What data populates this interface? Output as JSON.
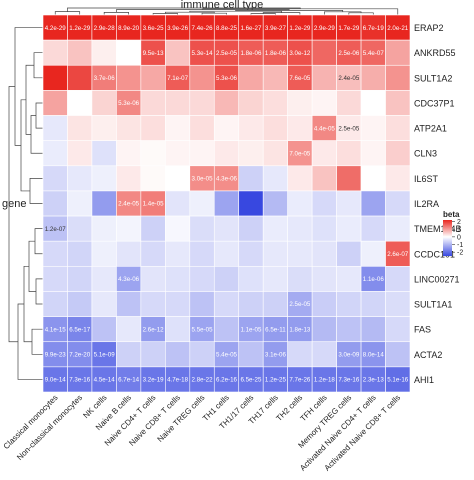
{
  "chart_data": {
    "type": "heatmap",
    "title": "immune cell type",
    "ylabel": "gene",
    "columns": [
      "Classical monocytes",
      "Non-classical monocytes",
      "NK cells",
      "Naive B cells",
      "Naive CD4+ T cells",
      "Naive CD8+ T cells",
      "Naive TREG cells",
      "TH1 cells",
      "TH1/17 cells",
      "TH17 cells",
      "TH2 cells",
      "TFH cells",
      "Memory TREG cells",
      "Activated Naive CD4+ T cells",
      "Activated Naive CD8+ T cells"
    ],
    "rows": [
      "ERAP2",
      "ANKRD55",
      "SULT1A2",
      "CDC37P1",
      "ATP2A1",
      "CLN3",
      "IL6ST",
      "IL2RA",
      "TMEM194B",
      "CCDC101",
      "LINC00271",
      "SULT1A1",
      "FAS",
      "ACTA2",
      "AHI1"
    ],
    "legend": {
      "title": "beta",
      "ticks": [
        2,
        1,
        0,
        -1,
        -2
      ],
      "range": [
        -2.5,
        2.2
      ]
    },
    "beta": [
      [
        2.1,
        2.0,
        2.0,
        2.0,
        2.0,
        2.0,
        2.0,
        2.0,
        2.0,
        2.0,
        2.0,
        2.0,
        2.0,
        1.9,
        2.0
      ],
      [
        0.35,
        0.55,
        0.15,
        0.0,
        1.6,
        0.55,
        1.6,
        1.6,
        1.5,
        1.5,
        1.6,
        1.4,
        1.5,
        1.4,
        0.85
      ],
      [
        2.1,
        1.7,
        1.2,
        1.0,
        0.8,
        1.5,
        1.0,
        1.6,
        0.8,
        0.65,
        1.5,
        0.7,
        0.6,
        0.75,
        1.0
      ],
      [
        0.85,
        0.0,
        0.4,
        1.1,
        0.35,
        0.35,
        0.35,
        0.65,
        0.4,
        0.3,
        0.15,
        0.1,
        0.35,
        0.0,
        0.55
      ],
      [
        -0.3,
        0.25,
        0.15,
        0.25,
        0.3,
        0.1,
        0.3,
        0.1,
        0.2,
        0.3,
        0.2,
        1.1,
        0.2,
        0.1,
        0.3
      ],
      [
        -0.25,
        0.2,
        -0.4,
        0.1,
        0.05,
        0.1,
        0.1,
        0.2,
        0.15,
        0.25,
        1.0,
        0.2,
        0.3,
        0.1,
        0.45
      ],
      [
        -0.5,
        -0.3,
        -0.2,
        0.2,
        0.05,
        0.0,
        1.05,
        1.05,
        -0.6,
        -0.3,
        0.2,
        0.55,
        1.35,
        0.0,
        0.2
      ],
      [
        -0.6,
        -0.2,
        -1.3,
        1.1,
        1.2,
        -0.35,
        -0.2,
        -1.2,
        -2.4,
        -0.9,
        -0.25,
        -0.5,
        -0.3,
        -1.2,
        -0.5
      ],
      [
        -0.8,
        -0.45,
        -0.2,
        -0.15,
        -0.6,
        -0.1,
        -0.45,
        -0.35,
        -0.6,
        -0.25,
        -0.3,
        -0.4,
        -0.25,
        -0.5,
        -0.25
      ],
      [
        -0.5,
        -0.55,
        -0.2,
        -0.35,
        -0.5,
        -0.3,
        -0.5,
        -0.3,
        -0.5,
        -0.3,
        -0.3,
        -0.35,
        -0.6,
        -0.2,
        1.5
      ],
      [
        -0.5,
        -0.55,
        -0.3,
        -1.2,
        -0.35,
        -0.4,
        -0.5,
        -0.6,
        -0.4,
        -0.3,
        -0.45,
        -0.35,
        -0.3,
        -1.5,
        -0.5
      ],
      [
        -0.55,
        -0.7,
        -0.3,
        -0.8,
        -0.5,
        -0.5,
        -0.8,
        -0.5,
        -0.6,
        -0.6,
        -1.1,
        -0.65,
        -0.55,
        -0.55,
        -0.45
      ],
      [
        -1.4,
        -1.6,
        -0.8,
        -0.3,
        -1.3,
        -0.4,
        -1.2,
        -0.8,
        -1.2,
        -1.3,
        -1.3,
        -0.9,
        -0.8,
        -0.9,
        -0.5
      ],
      [
        -1.5,
        -1.5,
        -1.8,
        -0.6,
        -0.6,
        -0.8,
        -0.6,
        -1.2,
        -0.8,
        -1.3,
        -0.5,
        -0.5,
        -1.3,
        -1.4,
        -0.8
      ],
      [
        -1.8,
        -1.8,
        -1.8,
        -1.7,
        -1.8,
        -1.8,
        -1.8,
        -1.8,
        -1.8,
        -1.8,
        -1.8,
        -1.8,
        -1.8,
        -1.8,
        -1.9
      ]
    ],
    "pvalues": [
      [
        "4.2e-29",
        "1.2e-29",
        "2.9e-28",
        "8.9e-20",
        "3.6e-25",
        "3.9e-26",
        "7.4e-26",
        "8.8e-25",
        "1.6e-27",
        "3.9e-27",
        "1.2e-29",
        "2.9e-29",
        "1.7e-29",
        "6.7e-19",
        "2.0e-21"
      ],
      [
        "",
        "",
        "",
        "",
        "9.5e-13",
        "",
        "5.3e-14",
        "2.5e-05",
        "1.8e-06",
        "1.8e-06",
        "3.0e-12",
        "",
        "2.5e-06",
        "5.4e-07",
        ""
      ],
      [
        "",
        "",
        "3.7e-06",
        "",
        "",
        "7.1e-07",
        "",
        "5.3e-06",
        "",
        "",
        "7.6e-05",
        "",
        "2.4e-05",
        "",
        ""
      ],
      [
        "",
        "",
        "",
        "5.3e-06",
        "",
        "",
        "",
        "",
        "",
        "",
        "",
        "",
        "",
        "",
        ""
      ],
      [
        "",
        "",
        "",
        "",
        "",
        "",
        "",
        "",
        "",
        "",
        "",
        "4.4e-05",
        "2.5e-05",
        "",
        ""
      ],
      [
        "",
        "",
        "",
        "",
        "",
        "",
        "",
        "",
        "",
        "",
        "7.0e-05",
        "",
        "",
        "",
        ""
      ],
      [
        "",
        "",
        "",
        "",
        "",
        "",
        "3.0e-05",
        "4.3e-06",
        "",
        "",
        "",
        "",
        "",
        "",
        ""
      ],
      [
        "",
        "",
        "",
        "2.4e-05",
        "1.4e-05",
        "",
        "",
        "",
        "",
        "",
        "",
        "",
        "",
        "",
        ""
      ],
      [
        "1.2e-07",
        "",
        "",
        "",
        "",
        "",
        "",
        "",
        "",
        "",
        "",
        "",
        "",
        "",
        ""
      ],
      [
        "",
        "",
        "",
        "",
        "",
        "",
        "",
        "",
        "",
        "",
        "",
        "",
        "",
        "",
        "2.6e-07"
      ],
      [
        "",
        "",
        "",
        "4.3e-06",
        "",
        "",
        "",
        "",
        "",
        "",
        "",
        "",
        "",
        "1.1e-06",
        ""
      ],
      [
        "",
        "",
        "",
        "",
        "",
        "",
        "",
        "",
        "",
        "",
        "2.5e-05",
        "",
        "",
        "",
        ""
      ],
      [
        "4.1e-15",
        "6.5e-17",
        "",
        "",
        "2.6e-12",
        "",
        "5.5e-05",
        "",
        "1.1e-05",
        "6.5e-11",
        "1.8e-13",
        "",
        "",
        "",
        ""
      ],
      [
        "9.9e-23",
        "7.2e-20",
        "5.1e-09",
        "",
        "",
        "",
        "",
        "5.4e-05",
        "",
        "3.1e-06",
        "",
        "",
        "3.0e-09",
        "8.0e-14",
        ""
      ],
      [
        "9.0e-14",
        "7.3e-16",
        "4.5e-14",
        "6.7e-14",
        "3.2e-19",
        "4.7e-18",
        "2.8e-22",
        "6.2e-16",
        "6.5e-25",
        "1.2e-25",
        "7.7e-26",
        "1.2e-18",
        "7.3e-16",
        "2.3e-13",
        "5.1e-16"
      ]
    ]
  }
}
